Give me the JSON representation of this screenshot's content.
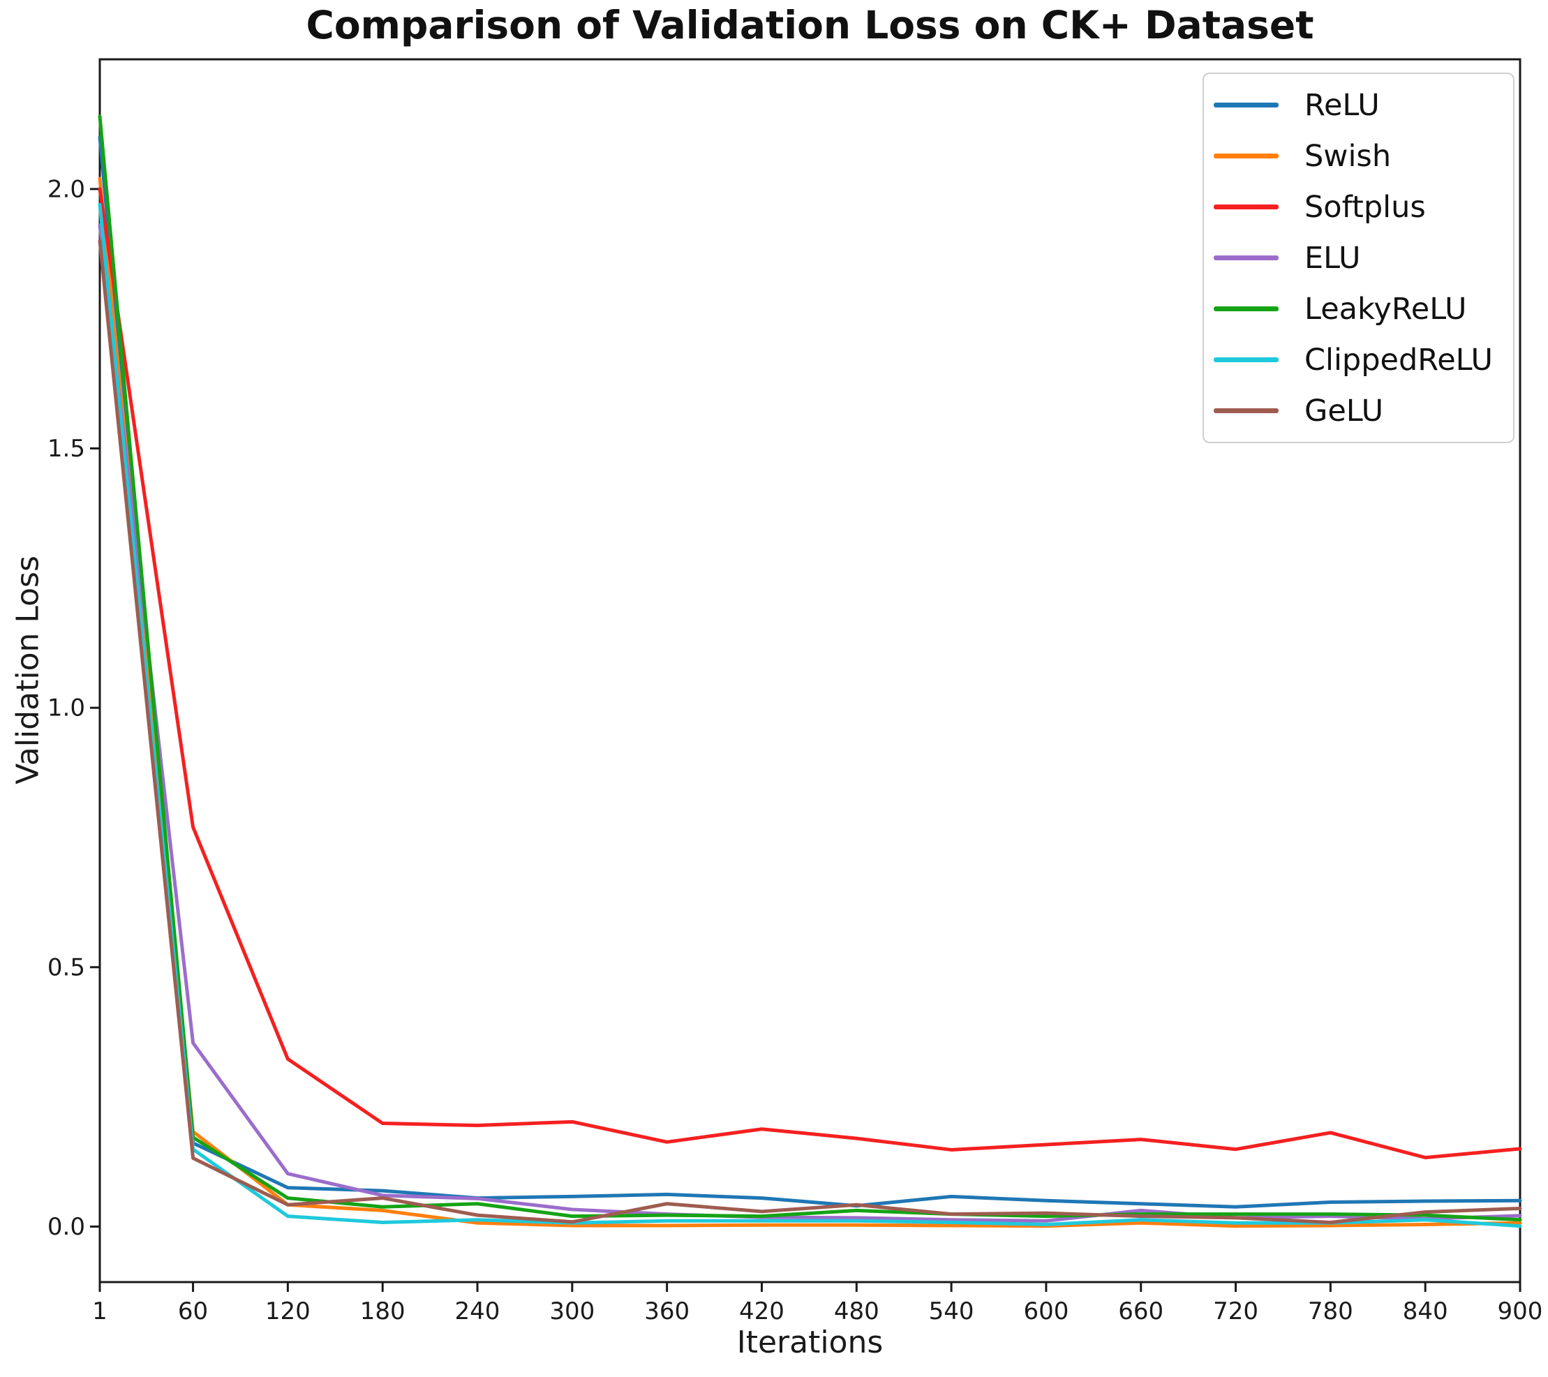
{
  "figure": {
    "title": "Comparison of Validation Loss on CK+ Dataset",
    "xlabel": "Iterations",
    "ylabel": "Validation Loss"
  },
  "chart_data": {
    "type": "line",
    "title": "Comparison of Validation Loss on CK+ Dataset",
    "xlabel": "Iterations",
    "ylabel": "Validation Loss",
    "grid": false,
    "legend_position": "upper right",
    "xlim": [
      1,
      900
    ],
    "ylim": [
      -0.107,
      2.25
    ],
    "xticks": [
      1,
      60,
      120,
      180,
      240,
      300,
      360,
      420,
      480,
      540,
      600,
      660,
      720,
      780,
      840,
      900
    ],
    "yticks": [
      0.0,
      0.5,
      1.0,
      1.5,
      2.0
    ],
    "ytick_labels": [
      "0.0",
      "0.5",
      "1.0",
      "1.5",
      "2.0"
    ],
    "x": [
      1,
      60,
      120,
      180,
      240,
      300,
      360,
      420,
      480,
      540,
      600,
      660,
      720,
      780,
      840,
      900
    ],
    "series": [
      {
        "name": "ReLU",
        "color": "#1f77b4",
        "values": [
          2.1,
          0.161,
          0.075,
          0.069,
          0.055,
          0.058,
          0.062,
          0.055,
          0.04,
          0.058,
          0.05,
          0.044,
          0.038,
          0.047,
          0.049,
          0.05
        ]
      },
      {
        "name": "Swish",
        "color": "#ff7f0e",
        "values": [
          2.02,
          0.183,
          0.042,
          0.031,
          0.007,
          0.002,
          0.002,
          0.003,
          0.003,
          0.002,
          0.001,
          0.007,
          0.001,
          0.002,
          0.004,
          0.007
        ]
      },
      {
        "name": "Softplus",
        "color": "#f52020",
        "values": [
          2.0,
          0.77,
          0.323,
          0.199,
          0.195,
          0.202,
          0.163,
          0.188,
          0.17,
          0.148,
          0.158,
          0.168,
          0.149,
          0.181,
          0.133,
          0.15
        ]
      },
      {
        "name": "ELU",
        "color": "#9b6dcb",
        "values": [
          1.93,
          0.354,
          0.102,
          0.06,
          0.054,
          0.033,
          0.024,
          0.018,
          0.017,
          0.013,
          0.011,
          0.031,
          0.017,
          0.02,
          0.015,
          0.021
        ]
      },
      {
        "name": "LeakyReLU",
        "color": "#15a315",
        "values": [
          2.14,
          0.172,
          0.055,
          0.038,
          0.044,
          0.02,
          0.022,
          0.02,
          0.031,
          0.024,
          0.02,
          0.024,
          0.024,
          0.024,
          0.022,
          0.013
        ]
      },
      {
        "name": "ClippedReLU",
        "color": "#1ec9dc",
        "values": [
          1.97,
          0.149,
          0.02,
          0.008,
          0.013,
          0.007,
          0.011,
          0.011,
          0.011,
          0.008,
          0.004,
          0.013,
          0.007,
          0.007,
          0.013,
          0.001
        ]
      },
      {
        "name": "GeLU",
        "color": "#9e5c50",
        "values": [
          1.9,
          0.132,
          0.042,
          0.055,
          0.022,
          0.009,
          0.044,
          0.029,
          0.042,
          0.024,
          0.026,
          0.02,
          0.017,
          0.008,
          0.028,
          0.035
        ]
      }
    ],
    "axis_color": "#1a1a1a"
  }
}
